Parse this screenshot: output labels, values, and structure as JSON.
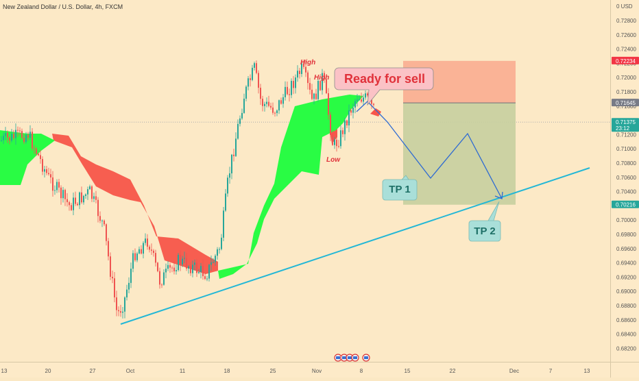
{
  "header": {
    "title": "New Zealand Dollar / U.S. Dollar, 4h, FXCM",
    "currency": "USD"
  },
  "chart_data": {
    "type": "candlestick",
    "symbol": "NZDUSD",
    "timeframe": "4h",
    "ylim": [
      0.681,
      0.73
    ],
    "price_ticks": [
      "0.72800",
      "0.72600",
      "0.72400",
      "0.72200",
      "0.72000",
      "0.71800",
      "0.71600",
      "0.71400",
      "0.71200",
      "0.71000",
      "0.70800",
      "0.70600",
      "0.70400",
      "0.70200",
      "0.70000",
      "0.69800",
      "0.69600",
      "0.69400",
      "0.69200",
      "0.69000",
      "0.68800",
      "0.68600",
      "0.68400",
      "0.68200"
    ],
    "price_tick_values": [
      0.728,
      0.726,
      0.724,
      0.722,
      0.72,
      0.718,
      0.716,
      0.714,
      0.712,
      0.71,
      0.708,
      0.706,
      0.704,
      0.702,
      0.7,
      0.698,
      0.696,
      0.694,
      0.692,
      0.69,
      0.688,
      0.686,
      0.684,
      0.682
    ],
    "time_labels": [
      "13",
      "20",
      "27",
      "Oct",
      "11",
      "18",
      "25",
      "Nov",
      "8",
      "15",
      "22",
      "Dec",
      "7",
      "13"
    ],
    "price_tags": [
      {
        "label": "0.72234",
        "value": 0.72234,
        "color": "#f23645"
      },
      {
        "label": "0.71645",
        "value": 0.71645,
        "color": "#787b86"
      },
      {
        "label": "0.71375",
        "sublabel": "23:12",
        "value": 0.71375,
        "color": "#26a69a"
      },
      {
        "label": "0.70216",
        "value": 0.70216,
        "color": "#26a69a"
      }
    ],
    "position": {
      "stop": 0.72234,
      "entry": 0.71645,
      "target": 0.70216
    },
    "projection_path": [
      [
        0.7163,
        0.7178
      ],
      [
        0.7146,
        0.7136
      ],
      [
        0.7094,
        0.706
      ],
      [
        0.7103,
        0.712
      ],
      [
        0.7028,
        0.7026
      ]
    ],
    "annotations": {
      "high1": "High",
      "high2": "High",
      "low": "Low",
      "callout": "Ready for sell",
      "tp1": "TP 1",
      "tp2": "TP 2"
    },
    "colors": {
      "up": "#26a69a",
      "down": "#ef5350",
      "cloud_bull": "#29fc44",
      "cloud_bear": "#f7564a",
      "stop_zone": "#f9a98d",
      "target_zone": "#c7cf9e",
      "trendline": "#22b7d6",
      "path": "#2d6ad3"
    }
  }
}
